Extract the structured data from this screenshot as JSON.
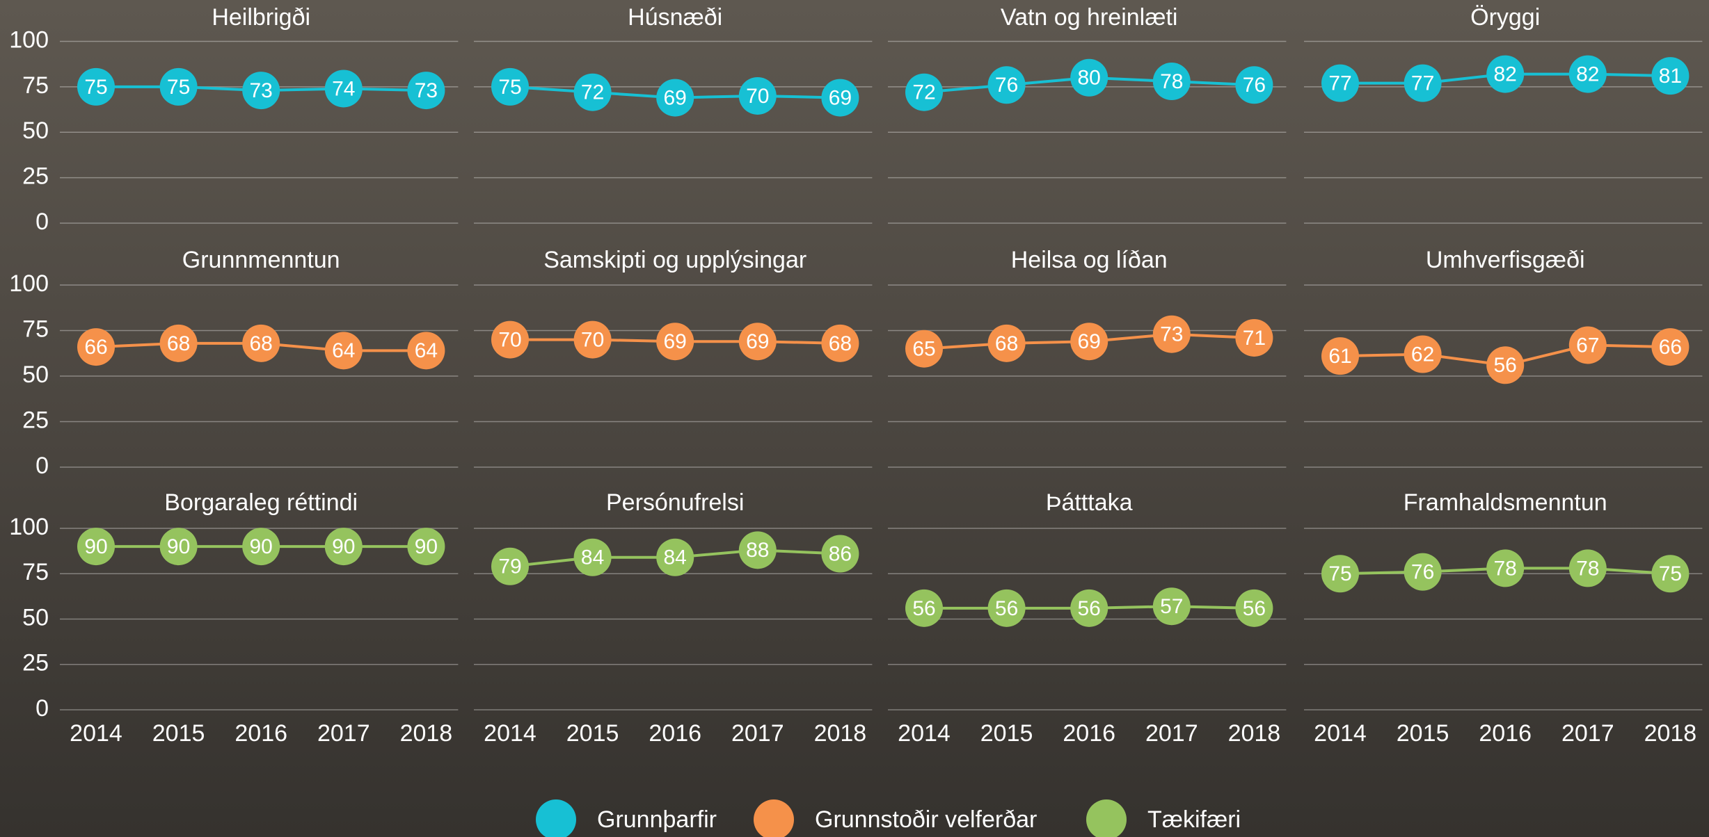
{
  "chart_data": [
    {
      "type": "line",
      "title": "Heilbrigði",
      "x": [
        2014,
        2015,
        2016,
        2017,
        2018
      ],
      "values": [
        75,
        75,
        73,
        74,
        73
      ],
      "color": "#17c0d4",
      "ylim": [
        0,
        100
      ],
      "yticks": [
        0,
        25,
        50,
        75,
        100
      ],
      "grid": true
    },
    {
      "type": "line",
      "title": "Húsnæði",
      "x": [
        2014,
        2015,
        2016,
        2017,
        2018
      ],
      "values": [
        75,
        72,
        69,
        70,
        69
      ],
      "color": "#17c0d4",
      "ylim": [
        0,
        100
      ],
      "yticks": [
        0,
        25,
        50,
        75,
        100
      ],
      "grid": true
    },
    {
      "type": "line",
      "title": "Vatn og hreinlæti",
      "x": [
        2014,
        2015,
        2016,
        2017,
        2018
      ],
      "values": [
        72,
        76,
        80,
        78,
        76
      ],
      "color": "#17c0d4",
      "ylim": [
        0,
        100
      ],
      "yticks": [
        0,
        25,
        50,
        75,
        100
      ],
      "grid": true
    },
    {
      "type": "line",
      "title": "Öryggi",
      "x": [
        2014,
        2015,
        2016,
        2017,
        2018
      ],
      "values": [
        77,
        77,
        82,
        82,
        81
      ],
      "color": "#17c0d4",
      "ylim": [
        0,
        100
      ],
      "yticks": [
        0,
        25,
        50,
        75,
        100
      ],
      "grid": true
    },
    {
      "type": "line",
      "title": "Grunnmenntun",
      "x": [
        2014,
        2015,
        2016,
        2017,
        2018
      ],
      "values": [
        66,
        68,
        68,
        64,
        64
      ],
      "color": "#f5914a",
      "ylim": [
        0,
        100
      ],
      "yticks": [
        0,
        25,
        50,
        75,
        100
      ],
      "grid": true
    },
    {
      "type": "line",
      "title": "Samskipti og upplýsingar",
      "x": [
        2014,
        2015,
        2016,
        2017,
        2018
      ],
      "values": [
        70,
        70,
        69,
        69,
        68
      ],
      "color": "#f5914a",
      "ylim": [
        0,
        100
      ],
      "yticks": [
        0,
        25,
        50,
        75,
        100
      ],
      "grid": true
    },
    {
      "type": "line",
      "title": "Heilsa og líðan",
      "x": [
        2014,
        2015,
        2016,
        2017,
        2018
      ],
      "values": [
        65,
        68,
        69,
        73,
        71
      ],
      "color": "#f5914a",
      "ylim": [
        0,
        100
      ],
      "yticks": [
        0,
        25,
        50,
        75,
        100
      ],
      "grid": true
    },
    {
      "type": "line",
      "title": "Umhverfisgæði",
      "x": [
        2014,
        2015,
        2016,
        2017,
        2018
      ],
      "values": [
        61,
        62,
        56,
        67,
        66
      ],
      "color": "#f5914a",
      "ylim": [
        0,
        100
      ],
      "yticks": [
        0,
        25,
        50,
        75,
        100
      ],
      "grid": true
    },
    {
      "type": "line",
      "title": "Borgaraleg réttindi",
      "x": [
        2014,
        2015,
        2016,
        2017,
        2018
      ],
      "values": [
        90,
        90,
        90,
        90,
        90
      ],
      "color": "#95c35e",
      "ylim": [
        0,
        100
      ],
      "yticks": [
        0,
        25,
        50,
        75,
        100
      ],
      "grid": true
    },
    {
      "type": "line",
      "title": "Persónufrelsi",
      "x": [
        2014,
        2015,
        2016,
        2017,
        2018
      ],
      "values": [
        79,
        84,
        84,
        88,
        86
      ],
      "color": "#95c35e",
      "ylim": [
        0,
        100
      ],
      "yticks": [
        0,
        25,
        50,
        75,
        100
      ],
      "grid": true
    },
    {
      "type": "line",
      "title": "Þátttaka",
      "x": [
        2014,
        2015,
        2016,
        2017,
        2018
      ],
      "values": [
        56,
        56,
        56,
        57,
        56
      ],
      "color": "#95c35e",
      "ylim": [
        0,
        100
      ],
      "yticks": [
        0,
        25,
        50,
        75,
        100
      ],
      "grid": true
    },
    {
      "type": "line",
      "title": "Framhaldsmenntun",
      "x": [
        2014,
        2015,
        2016,
        2017,
        2018
      ],
      "values": [
        75,
        76,
        78,
        78,
        75
      ],
      "color": "#95c35e",
      "ylim": [
        0,
        100
      ],
      "yticks": [
        0,
        25,
        50,
        75,
        100
      ],
      "grid": true
    }
  ],
  "legend": [
    {
      "name": "Grunnþarfir",
      "color": "#17c0d4"
    },
    {
      "name": "Grunnstoðir velferðar",
      "color": "#f5914a"
    },
    {
      "name": "Tækifæri",
      "color": "#95c35e"
    }
  ]
}
